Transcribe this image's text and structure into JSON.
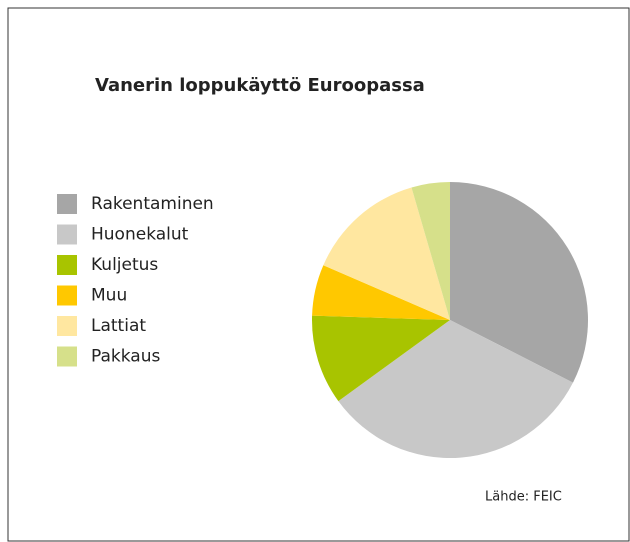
{
  "chart_data": {
    "type": "pie",
    "title": "Vanerin loppukäyttö Euroopassa",
    "categories": [
      "Rakentaminen",
      "Huonekalut",
      "Kuljetus",
      "Muu",
      "Lattiat",
      "Pakkaus"
    ],
    "values": [
      32.5,
      32.5,
      10.5,
      6,
      14,
      4.5
    ],
    "colors": [
      "#a6a6a6",
      "#c8c8c8",
      "#a8c400",
      "#ffc800",
      "#ffe7a0",
      "#d6e08a"
    ],
    "legend": "left",
    "source": "Lähde: FEIC"
  }
}
